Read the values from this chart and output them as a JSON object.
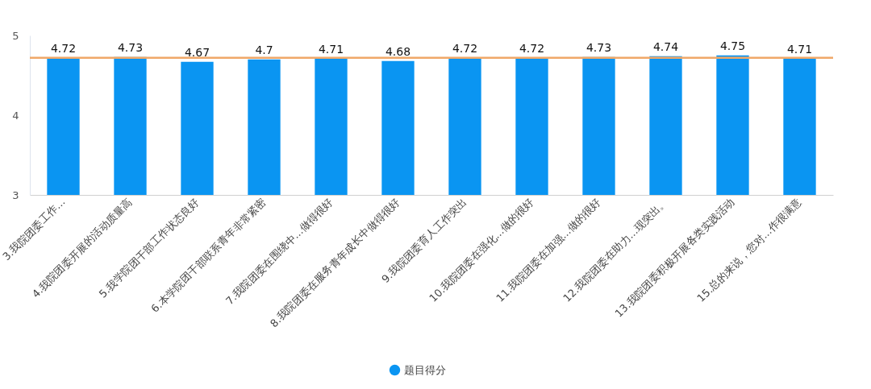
{
  "chart_data": {
    "type": "bar",
    "categories": [
      "3.我院团委工作...",
      "4.我院团委开展的活动质量高",
      "5.我学院团干部工作状态良好",
      "6.本学院团干部联系青年非常紧密",
      "7.我院团委在围绕中...做得很好",
      "8.我院团委在服务青年成长中做得很好",
      "9.我院团委育人工作突出",
      "10.我院团委在强化...做的很好",
      "11.我院团委在加强...做的很好",
      "12.我院团委在助力...现突出。",
      "13.我院团委积极开展各类实践活动",
      "15.总的来说，您对...作很满意"
    ],
    "series": [
      {
        "name": "题目得分",
        "color": "#0a95f2",
        "values": [
          4.72,
          4.73,
          4.67,
          4.7,
          4.71,
          4.68,
          4.72,
          4.72,
          4.73,
          4.74,
          4.75,
          4.71
        ]
      }
    ],
    "ylim": [
      3,
      5
    ],
    "yticks": [
      3,
      4,
      5
    ],
    "grid": false,
    "legend": "bottom",
    "data_labels": true,
    "marker": "circle",
    "ref_lines": [
      {
        "axis": "y",
        "value": 4.72,
        "color": "#f0a868"
      }
    ]
  }
}
